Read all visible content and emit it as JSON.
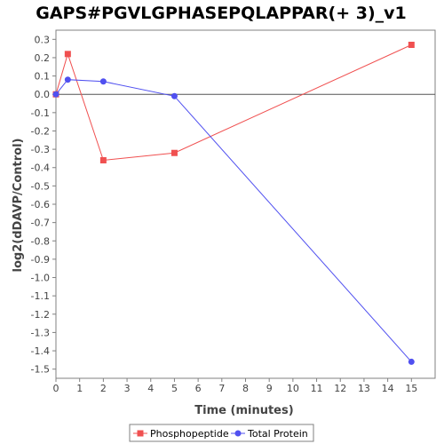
{
  "chart_data": {
    "type": "line",
    "title": "GAPS#PGVLGPHASEPQLAPPAR(+ 3)_v1",
    "xlabel": "Time (minutes)",
    "ylabel": "log2(dDAVP/Control)",
    "xlim": [
      0,
      16
    ],
    "ylim": [
      -1.55,
      0.35
    ],
    "x_ticks": [
      0,
      1,
      2,
      3,
      4,
      5,
      6,
      7,
      8,
      9,
      10,
      11,
      12,
      13,
      14,
      15
    ],
    "y_ticks": [
      0.3,
      0.2,
      0.1,
      0.0,
      -0.1,
      -0.2,
      -0.3,
      -0.4,
      -0.5,
      -0.6,
      -0.7,
      -0.8,
      -0.9,
      -1.0,
      -1.1,
      -1.2,
      -1.3,
      -1.4,
      -1.5
    ],
    "grid": false,
    "zero_line": true,
    "legend_position": "bottom",
    "series": [
      {
        "name": "Phosphopeptide",
        "color": "#f05050",
        "marker": "square",
        "x": [
          0,
          0.5,
          2,
          5,
          15
        ],
        "y": [
          0.0,
          0.22,
          -0.36,
          -0.32,
          0.27
        ]
      },
      {
        "name": "Total Protein",
        "color": "#5050f0",
        "marker": "circle",
        "x": [
          0,
          0.5,
          2,
          5,
          15
        ],
        "y": [
          0.0,
          0.08,
          0.07,
          -0.01,
          -1.46
        ]
      }
    ]
  }
}
